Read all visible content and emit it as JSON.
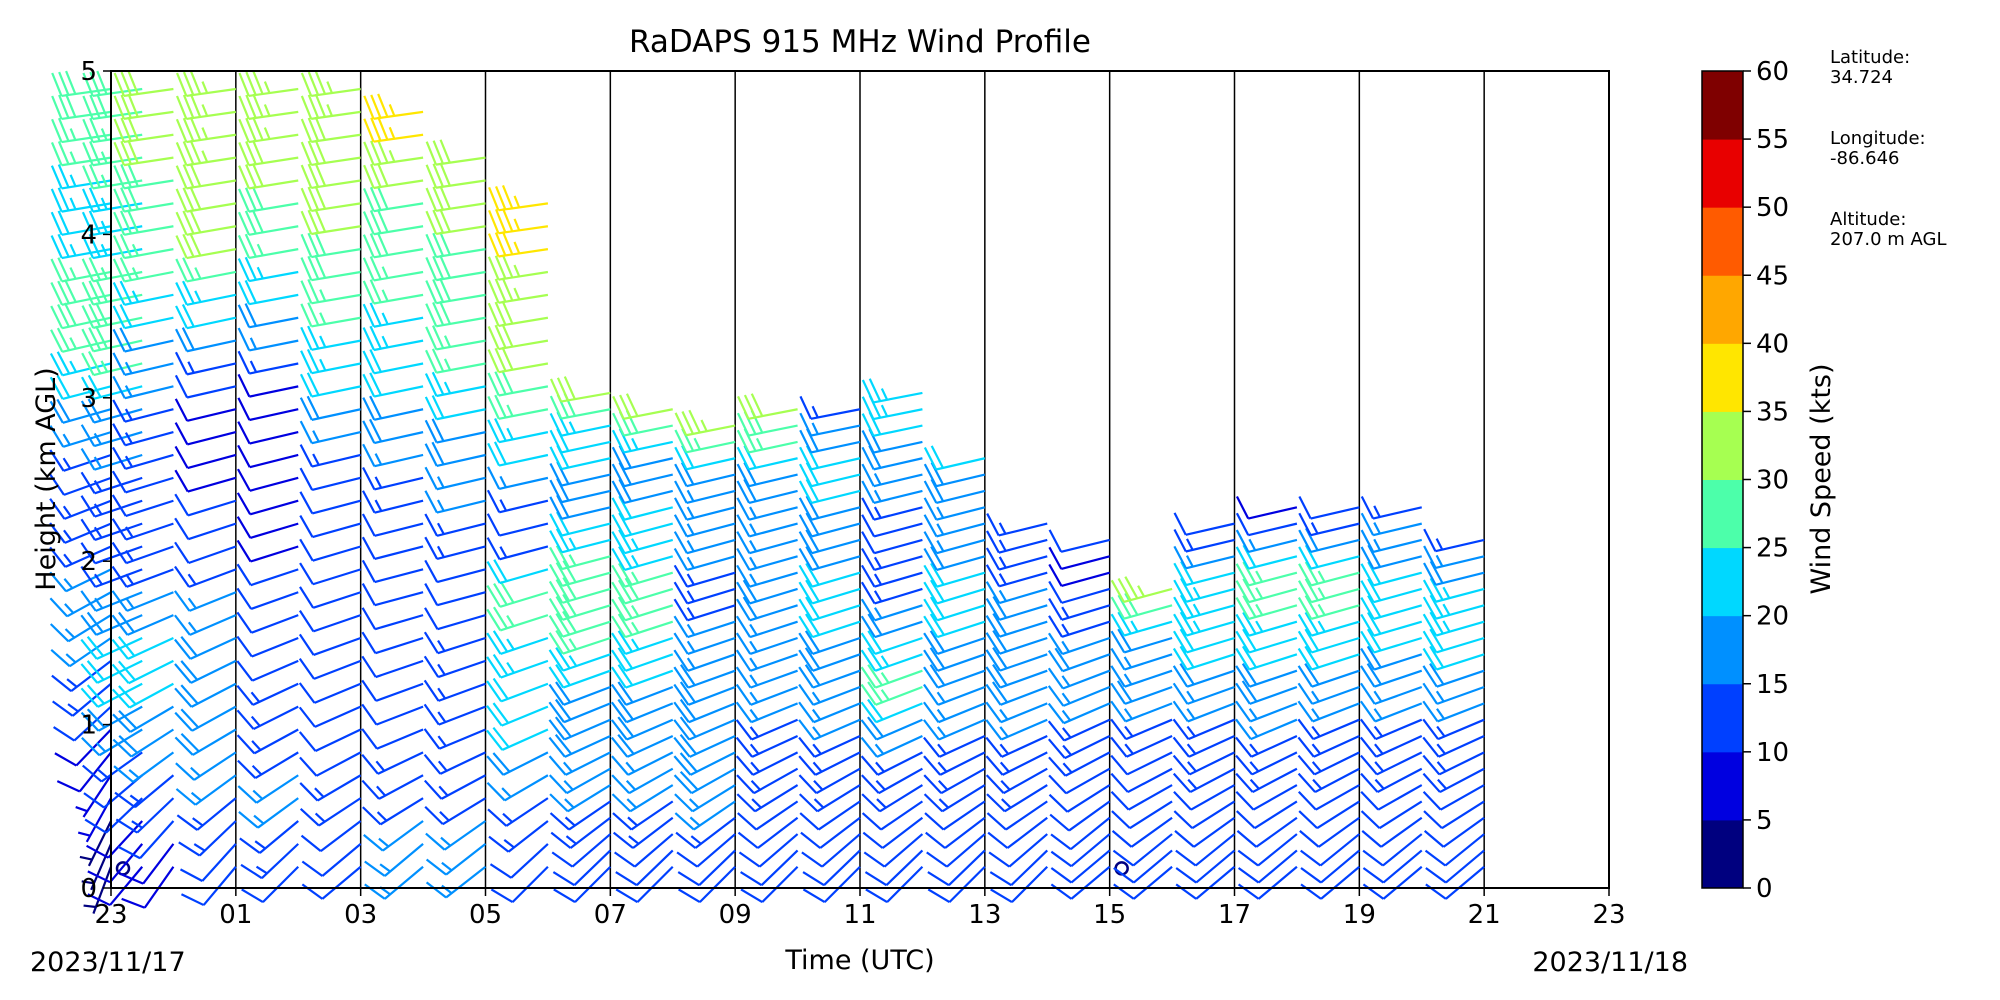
{
  "chart_data": {
    "type": "wind_barb_profile",
    "title": "RaDAPS 915 MHz Wind Profile",
    "xlabel": "Time (UTC)",
    "ylabel": "Height (km AGL)",
    "x_ticks": [
      "23",
      "01",
      "03",
      "05",
      "07",
      "09",
      "11",
      "13",
      "15",
      "17",
      "19",
      "21",
      "23"
    ],
    "y_ticks": [
      "0",
      "1",
      "2",
      "3",
      "4",
      "5"
    ],
    "ylim": [
      0,
      5
    ],
    "xlim_hours": [
      0,
      24
    ],
    "start_date": "2023/11/17",
    "end_date": "2023/11/18",
    "vertical_gridlines": true,
    "colorbar": {
      "label": "Wind Speed (kts)",
      "ticks": [
        "0",
        "5",
        "10",
        "15",
        "20",
        "25",
        "30",
        "35",
        "40",
        "45",
        "50",
        "55",
        "60"
      ],
      "colors": [
        "#00007f",
        "#0000e0",
        "#0040ff",
        "#0090ff",
        "#00d8ff",
        "#4cffaa",
        "#a6ff51",
        "#ffe600",
        "#ffa700",
        "#ff5b00",
        "#e80000",
        "#7f0000"
      ]
    },
    "station": {
      "latitude_label": "Latitude:",
      "latitude": "34.724",
      "longitude_label": "Longitude:",
      "longitude": "-86.646",
      "altitude_label": "Altitude:",
      "altitude": "207.0 m AGL"
    },
    "profiles": [
      {
        "time_h": 0.0,
        "top_km": 5.0,
        "rows": [
          [
            0.1,
            3,
            200
          ],
          [
            0.6,
            6,
            210
          ],
          [
            1.0,
            10,
            225
          ],
          [
            1.5,
            15,
            235
          ],
          [
            2.0,
            15,
            245
          ],
          [
            2.5,
            12,
            250
          ],
          [
            3.0,
            20,
            255
          ],
          [
            3.5,
            30,
            258
          ],
          [
            4.0,
            22,
            260
          ],
          [
            4.8,
            28,
            262
          ]
        ],
        "calm_km": 0.12
      },
      {
        "time_h": 0.5,
        "top_km": 5.0,
        "rows": [
          [
            0.3,
            8,
            220
          ],
          [
            0.7,
            12,
            230
          ],
          [
            1.0,
            18,
            240
          ],
          [
            1.5,
            22,
            245
          ],
          [
            2.0,
            12,
            250
          ],
          [
            2.5,
            14,
            252
          ],
          [
            3.0,
            20,
            255
          ],
          [
            3.4,
            30,
            258
          ],
          [
            4.0,
            24,
            260
          ],
          [
            4.8,
            28,
            262
          ]
        ]
      },
      {
        "time_h": 1.0,
        "top_km": 5.0,
        "rows": [
          [
            0.2,
            8,
            215
          ],
          [
            0.6,
            14,
            228
          ],
          [
            1.0,
            18,
            238
          ],
          [
            1.5,
            22,
            245
          ],
          [
            2.0,
            13,
            250
          ],
          [
            2.5,
            12,
            253
          ],
          [
            3.0,
            14,
            256
          ],
          [
            3.5,
            22,
            258
          ],
          [
            4.0,
            28,
            260
          ],
          [
            4.7,
            32,
            262
          ]
        ]
      },
      {
        "time_h": 2.0,
        "top_km": 5.0,
        "rows": [
          [
            0.2,
            10,
            220
          ],
          [
            0.6,
            15,
            232
          ],
          [
            1.0,
            18,
            240
          ],
          [
            1.5,
            20,
            245
          ],
          [
            2.0,
            12,
            250
          ],
          [
            2.5,
            10,
            254
          ],
          [
            3.0,
            9,
            257
          ],
          [
            3.5,
            22,
            258
          ],
          [
            4.0,
            32,
            260
          ],
          [
            4.8,
            33,
            262
          ]
        ]
      },
      {
        "time_h": 3.0,
        "top_km": 5.0,
        "rows": [
          [
            0.2,
            12,
            225
          ],
          [
            0.6,
            16,
            235
          ],
          [
            1.0,
            14,
            242
          ],
          [
            1.5,
            12,
            248
          ],
          [
            2.0,
            10,
            252
          ],
          [
            2.5,
            9,
            255
          ],
          [
            3.0,
            8,
            258
          ],
          [
            3.5,
            20,
            259
          ],
          [
            4.0,
            28,
            260
          ],
          [
            4.8,
            34,
            262
          ]
        ]
      },
      {
        "time_h": 4.0,
        "top_km": 5.0,
        "rows": [
          [
            0.3,
            12,
            230
          ],
          [
            0.6,
            13,
            238
          ],
          [
            1.0,
            12,
            245
          ],
          [
            1.5,
            11,
            250
          ],
          [
            2.0,
            10,
            253
          ],
          [
            2.5,
            12,
            256
          ],
          [
            3.0,
            20,
            258
          ],
          [
            3.5,
            26,
            260
          ],
          [
            4.0,
            30,
            261
          ],
          [
            4.8,
            33,
            262
          ]
        ]
      },
      {
        "time_h": 5.0,
        "top_km": 4.8,
        "rows": [
          [
            0.3,
            16,
            230
          ],
          [
            0.6,
            14,
            240
          ],
          [
            1.0,
            12,
            248
          ],
          [
            1.5,
            12,
            252
          ],
          [
            1.8,
            10,
            255
          ],
          [
            2.3,
            12,
            256
          ],
          [
            3.0,
            20,
            258
          ],
          [
            3.6,
            25,
            260
          ],
          [
            4.2,
            30,
            261
          ],
          [
            4.6,
            35,
            262
          ]
        ]
      },
      {
        "time_h": 6.0,
        "top_km": 4.6,
        "rows": [
          [
            0.3,
            16,
            232
          ],
          [
            0.6,
            14,
            240
          ],
          [
            1.0,
            14,
            248
          ],
          [
            1.5,
            13,
            252
          ],
          [
            1.8,
            10,
            255
          ],
          [
            2.3,
            15,
            256
          ],
          [
            2.8,
            20,
            258
          ],
          [
            3.4,
            28,
            260
          ],
          [
            4.0,
            30,
            261
          ],
          [
            4.5,
            32,
            262
          ]
        ]
      },
      {
        "time_h": 7.0,
        "top_km": 4.2,
        "rows": [
          [
            0.2,
            10,
            225
          ],
          [
            0.5,
            14,
            235
          ],
          [
            0.9,
            20,
            245
          ],
          [
            1.3,
            22,
            250
          ],
          [
            1.8,
            28,
            253
          ],
          [
            2.2,
            10,
            256
          ],
          [
            2.7,
            22,
            258
          ],
          [
            3.2,
            30,
            260
          ],
          [
            3.7,
            34,
            261
          ],
          [
            4.1,
            36,
            262
          ]
        ]
      },
      {
        "time_h": 8.0,
        "top_km": 3.1,
        "rows": [
          [
            0.2,
            10,
            225
          ],
          [
            0.5,
            14,
            235
          ],
          [
            0.9,
            18,
            245
          ],
          [
            1.3,
            20,
            250
          ],
          [
            1.7,
            30,
            253
          ],
          [
            2.0,
            28,
            255
          ],
          [
            2.4,
            18,
            257
          ],
          [
            2.8,
            22,
            258
          ],
          [
            3.0,
            32,
            260
          ]
        ]
      },
      {
        "time_h": 9.0,
        "top_km": 3.0,
        "rows": [
          [
            0.2,
            10,
            225
          ],
          [
            0.5,
            14,
            235
          ],
          [
            0.9,
            18,
            245
          ],
          [
            1.3,
            20,
            250
          ],
          [
            1.8,
            28,
            253
          ],
          [
            2.2,
            22,
            255
          ],
          [
            2.6,
            18,
            257
          ],
          [
            2.9,
            32,
            259
          ]
        ]
      },
      {
        "time_h": 10.0,
        "top_km": 2.9,
        "rows": [
          [
            0.2,
            10,
            225
          ],
          [
            0.5,
            15,
            235
          ],
          [
            0.9,
            20,
            245
          ],
          [
            1.3,
            18,
            250
          ],
          [
            1.8,
            14,
            253
          ],
          [
            2.2,
            16,
            255
          ],
          [
            2.6,
            18,
            257
          ],
          [
            2.85,
            36,
            259
          ]
        ]
      },
      {
        "time_h": 11.0,
        "top_km": 3.0,
        "rows": [
          [
            0.2,
            10,
            225
          ],
          [
            0.5,
            12,
            235
          ],
          [
            0.9,
            14,
            245
          ],
          [
            1.3,
            16,
            250
          ],
          [
            1.8,
            18,
            253
          ],
          [
            2.2,
            16,
            255
          ],
          [
            2.6,
            20,
            257
          ],
          [
            2.9,
            32,
            259
          ]
        ]
      },
      {
        "time_h": 12.0,
        "top_km": 3.0,
        "rows": [
          [
            0.2,
            10,
            225
          ],
          [
            0.5,
            12,
            235
          ],
          [
            0.9,
            14,
            245
          ],
          [
            1.3,
            18,
            250
          ],
          [
            1.8,
            22,
            253
          ],
          [
            2.2,
            18,
            255
          ],
          [
            2.6,
            22,
            257
          ],
          [
            2.9,
            14,
            259
          ]
        ]
      },
      {
        "time_h": 13.0,
        "top_km": 3.1,
        "rows": [
          [
            0.2,
            10,
            225
          ],
          [
            0.5,
            12,
            235
          ],
          [
            0.9,
            14,
            245
          ],
          [
            1.3,
            28,
            250
          ],
          [
            1.8,
            14,
            253
          ],
          [
            2.2,
            12,
            255
          ],
          [
            2.6,
            18,
            257
          ],
          [
            3.0,
            24,
            259
          ]
        ]
      },
      {
        "time_h": 14.0,
        "top_km": 2.7,
        "rows": [
          [
            0.2,
            10,
            225
          ],
          [
            0.5,
            12,
            235
          ],
          [
            0.9,
            14,
            245
          ],
          [
            1.3,
            18,
            250
          ],
          [
            1.8,
            22,
            253
          ],
          [
            2.2,
            16,
            255
          ],
          [
            2.6,
            20,
            257
          ]
        ]
      },
      {
        "time_h": 15.0,
        "top_km": 2.3,
        "rows": [
          [
            0.2,
            10,
            225
          ],
          [
            0.5,
            12,
            235
          ],
          [
            0.9,
            14,
            245
          ],
          [
            1.3,
            20,
            250
          ],
          [
            1.7,
            18,
            253
          ],
          [
            2.1,
            12,
            255
          ],
          [
            2.3,
            16,
            257
          ]
        ]
      },
      {
        "time_h": 16.0,
        "top_km": 2.2,
        "rows": [
          [
            0.4,
            12,
            230
          ],
          [
            0.7,
            12,
            240
          ],
          [
            1.0,
            14,
            245
          ],
          [
            1.4,
            18,
            250
          ],
          [
            1.7,
            14,
            253
          ],
          [
            2.0,
            8,
            255
          ],
          [
            2.2,
            14,
            257
          ]
        ],
        "calm_km": 0.12
      },
      {
        "time_h": 17.0,
        "top_km": 1.9,
        "rows": [
          [
            0.3,
            12,
            230
          ],
          [
            0.6,
            10,
            240
          ],
          [
            0.9,
            12,
            245
          ],
          [
            1.2,
            18,
            250
          ],
          [
            1.5,
            16,
            253
          ],
          [
            1.8,
            34,
            255
          ]
        ]
      },
      {
        "time_h": 18.0,
        "top_km": 2.3,
        "rows": [
          [
            0.3,
            10,
            230
          ],
          [
            0.6,
            12,
            240
          ],
          [
            0.9,
            14,
            245
          ],
          [
            1.2,
            16,
            250
          ],
          [
            1.5,
            22,
            253
          ],
          [
            1.8,
            24,
            255
          ],
          [
            2.2,
            12,
            257
          ]
        ]
      },
      {
        "time_h": 19.0,
        "top_km": 2.4,
        "rows": [
          [
            0.3,
            10,
            230
          ],
          [
            0.6,
            12,
            240
          ],
          [
            0.9,
            14,
            245
          ],
          [
            1.2,
            18,
            250
          ],
          [
            1.5,
            22,
            253
          ],
          [
            1.9,
            28,
            255
          ],
          [
            2.3,
            8,
            257
          ]
        ]
      },
      {
        "time_h": 20.0,
        "top_km": 2.4,
        "rows": [
          [
            0.3,
            10,
            230
          ],
          [
            0.6,
            12,
            240
          ],
          [
            0.9,
            14,
            245
          ],
          [
            1.2,
            16,
            250
          ],
          [
            1.5,
            22,
            253
          ],
          [
            1.9,
            28,
            255
          ],
          [
            2.3,
            10,
            257
          ]
        ]
      },
      {
        "time_h": 21.0,
        "top_km": 2.4,
        "rows": [
          [
            0.3,
            10,
            230
          ],
          [
            0.6,
            12,
            240
          ],
          [
            0.9,
            14,
            245
          ],
          [
            1.2,
            16,
            250
          ],
          [
            1.5,
            20,
            253
          ],
          [
            1.9,
            22,
            255
          ],
          [
            2.3,
            14,
            257
          ]
        ]
      },
      {
        "time_h": 22.0,
        "top_km": 2.2,
        "rows": [
          [
            0.3,
            10,
            230
          ],
          [
            0.6,
            12,
            240
          ],
          [
            0.9,
            14,
            245
          ],
          [
            1.2,
            16,
            250
          ],
          [
            1.5,
            22,
            253
          ],
          [
            1.8,
            24,
            255
          ],
          [
            2.1,
            14,
            257
          ]
        ]
      }
    ]
  }
}
